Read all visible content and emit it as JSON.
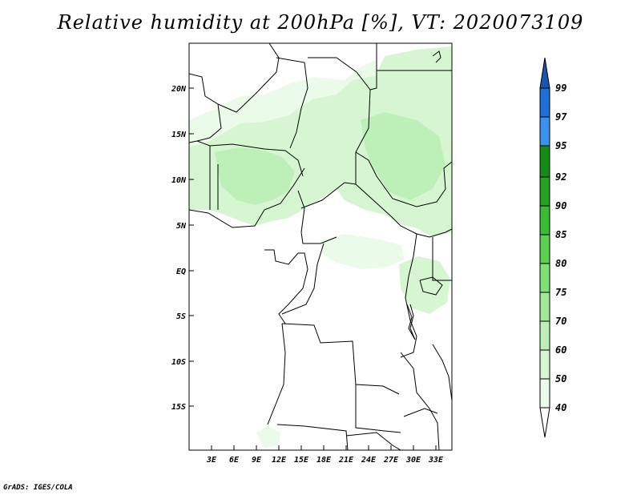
{
  "title": "Relative humidity at 200hPa [%], VT: 2020073109",
  "credit": "GrADS: IGES/COLA",
  "map": {
    "lat_ticks": [
      "20N",
      "15N",
      "10N",
      "5N",
      "EQ",
      "5S",
      "10S",
      "15S"
    ],
    "lon_ticks": [
      "3E",
      "6E",
      "9E",
      "12E",
      "15E",
      "18E",
      "21E",
      "24E",
      "27E",
      "30E",
      "33E"
    ],
    "colors": {
      "frame": "#000000",
      "border": "#000000"
    }
  },
  "colorbar": {
    "levels": [
      {
        "label": "40",
        "color": "#ebfbe9"
      },
      {
        "label": "50",
        "color": "#d6f6d2"
      },
      {
        "label": "60",
        "color": "#bdf0b7"
      },
      {
        "label": "70",
        "color": "#a0e898"
      },
      {
        "label": "75",
        "color": "#7fe074"
      },
      {
        "label": "80",
        "color": "#5ad24f"
      },
      {
        "label": "85",
        "color": "#39bb32"
      },
      {
        "label": "90",
        "color": "#24a322"
      },
      {
        "label": "92",
        "color": "#148b14"
      },
      {
        "label": "95",
        "color": "#3c91ef"
      },
      {
        "label": "97",
        "color": "#1f6fd8"
      },
      {
        "label": "99",
        "color": "#1755b0"
      }
    ],
    "under_color": "#ffffff",
    "over_color": "#1755b0"
  }
}
